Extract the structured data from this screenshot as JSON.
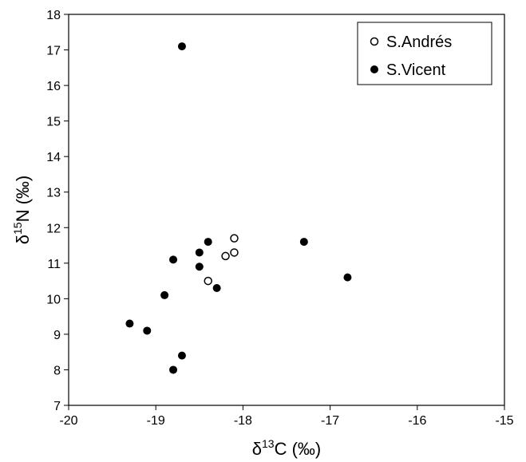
{
  "chart_data": {
    "type": "scatter",
    "xlim": [
      -20,
      -15
    ],
    "ylim": [
      7,
      18
    ],
    "x_ticks": [
      -20,
      -19,
      -18,
      -17,
      -16,
      -15
    ],
    "y_ticks": [
      7,
      8,
      9,
      10,
      11,
      12,
      13,
      14,
      15,
      16,
      17,
      18
    ],
    "xlabel_symbol": "δ",
    "xlabel_sup": "13",
    "xlabel_rest": "C (‰)",
    "ylabel_symbol": "δ",
    "ylabel_sup": "15",
    "ylabel_rest": "N (‰)",
    "grid": false,
    "legend_position": "top-right",
    "series": [
      {
        "name": "S.Andrés",
        "marker": "open-circle",
        "points": [
          {
            "x": -18.4,
            "y": 10.5
          },
          {
            "x": -18.2,
            "y": 11.2
          },
          {
            "x": -18.1,
            "y": 11.3
          },
          {
            "x": -18.1,
            "y": 11.7
          }
        ]
      },
      {
        "name": "S.Vicent",
        "marker": "filled-circle",
        "points": [
          {
            "x": -18.7,
            "y": 17.1
          },
          {
            "x": -18.4,
            "y": 11.6
          },
          {
            "x": -18.5,
            "y": 11.3
          },
          {
            "x": -18.8,
            "y": 11.1
          },
          {
            "x": -18.5,
            "y": 10.9
          },
          {
            "x": -18.3,
            "y": 10.3
          },
          {
            "x": -18.9,
            "y": 10.1
          },
          {
            "x": -19.3,
            "y": 9.3
          },
          {
            "x": -19.1,
            "y": 9.1
          },
          {
            "x": -18.7,
            "y": 8.4
          },
          {
            "x": -18.8,
            "y": 8.0
          },
          {
            "x": -17.3,
            "y": 11.6
          },
          {
            "x": -16.8,
            "y": 10.6
          }
        ]
      }
    ]
  }
}
